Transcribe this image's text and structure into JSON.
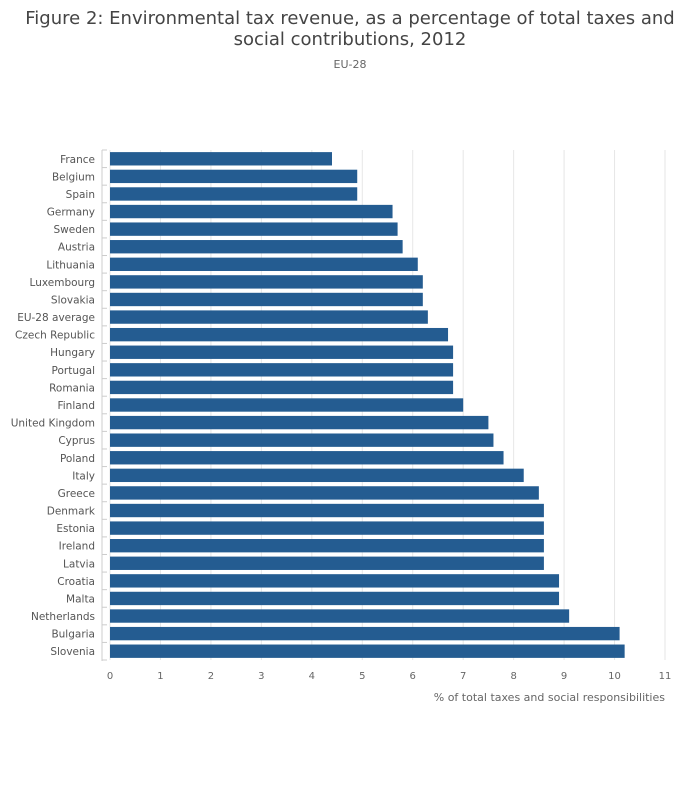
{
  "chart_data": {
    "type": "bar",
    "orientation": "horizontal",
    "title": "Figure 2: Environmental tax revenue, as a percentage of total taxes and social contributions, 2012",
    "subtitle": "EU-28",
    "xlabel": "% of total taxes and social responsibilities",
    "ylabel": "",
    "xlim": [
      0,
      11
    ],
    "x_ticks": [
      0,
      1,
      2,
      3,
      4,
      5,
      6,
      7,
      8,
      9,
      10,
      11
    ],
    "grid": true,
    "bar_color": "#245c91",
    "categories": [
      "France",
      "Belgium",
      "Spain",
      "Germany",
      "Sweden",
      "Austria",
      "Lithuania",
      "Luxembourg",
      "Slovakia",
      "EU-28 average",
      "Czech Republic",
      "Hungary",
      "Portugal",
      "Romania",
      "Finland",
      "United Kingdom",
      "Cyprus",
      "Poland",
      "Italy",
      "Greece",
      "Denmark",
      "Estonia",
      "Ireland",
      "Latvia",
      "Croatia",
      "Malta",
      "Netherlands",
      "Bulgaria",
      "Slovenia"
    ],
    "values": [
      4.4,
      4.9,
      4.9,
      5.6,
      5.7,
      5.8,
      6.1,
      6.2,
      6.2,
      6.3,
      6.7,
      6.8,
      6.8,
      6.8,
      7.0,
      7.5,
      7.6,
      7.8,
      8.2,
      8.5,
      8.6,
      8.6,
      8.6,
      8.6,
      8.9,
      8.9,
      9.1,
      10.1,
      10.2
    ]
  }
}
